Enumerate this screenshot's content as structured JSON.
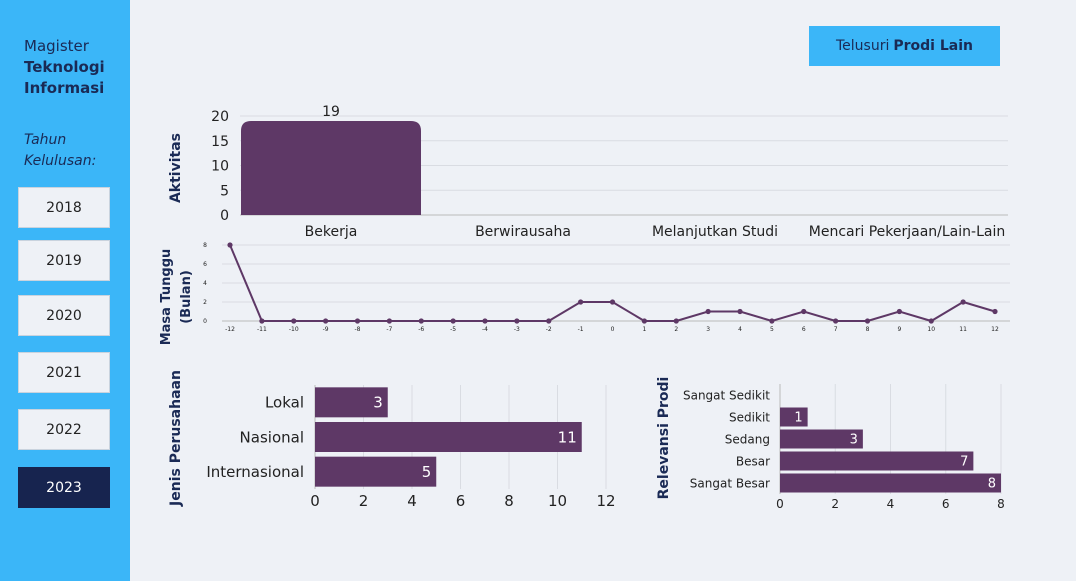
{
  "sidebar": {
    "program_line1": "Magister",
    "program_line2": "Teknologi",
    "program_line3": "Informasi",
    "tahun_line1": "Tahun",
    "tahun_line2": "Kelulusan:",
    "years": [
      "2018",
      "2019",
      "2020",
      "2021",
      "2022",
      "2023"
    ],
    "active_year": "2023"
  },
  "header": {
    "browse_prefix": "Telusuri",
    "browse_bold": "Prodi Lain"
  },
  "colors": {
    "bar": "#5e3866",
    "sidebar": "#3bb6f8",
    "active": "#17244f"
  },
  "chart_data": [
    {
      "type": "bar",
      "ylabel": "Aktivitas",
      "categories": [
        "Bekerja",
        "Berwirausaha",
        "Melanjutkan Studi",
        "Mencari Pekerjaan/Lain-Lain"
      ],
      "values": [
        19,
        0,
        0,
        0
      ],
      "data_labels": [
        "19"
      ],
      "ylim": [
        0,
        20
      ],
      "yticks": [
        0,
        5,
        10,
        15,
        20
      ]
    },
    {
      "type": "line",
      "ylabel_line1": "Masa Tunggu",
      "ylabel_line2": "(Bulan)",
      "x": [
        -12,
        -11,
        -10,
        -9,
        -8,
        -7,
        -6,
        -5,
        -4,
        -3,
        -2,
        -1,
        0,
        1,
        2,
        3,
        4,
        5,
        6,
        7,
        8,
        9,
        10,
        11,
        12
      ],
      "y": [
        8,
        0,
        0,
        0,
        0,
        0,
        0,
        0,
        0,
        0,
        0,
        2,
        2,
        0,
        0,
        1,
        1,
        0,
        1,
        0,
        0,
        1,
        0,
        2,
        1
      ],
      "ylim": [
        0,
        8
      ],
      "yticks": [
        0,
        2,
        4,
        6,
        8
      ]
    },
    {
      "type": "bar",
      "orientation": "horizontal",
      "ylabel": "Jenis Perusahaan",
      "categories": [
        "Lokal",
        "Nasional",
        "Internasional"
      ],
      "values": [
        3,
        11,
        5
      ],
      "xlim": [
        0,
        12
      ],
      "xticks": [
        0,
        2,
        4,
        6,
        8,
        10,
        12
      ]
    },
    {
      "type": "bar",
      "orientation": "horizontal",
      "ylabel": "Relevansi Prodi",
      "categories": [
        "Sangat Sedikit",
        "Sedikit",
        "Sedang",
        "Besar",
        "Sangat Besar"
      ],
      "values": [
        0,
        1,
        3,
        7,
        8
      ],
      "xlim": [
        0,
        8
      ],
      "xticks": [
        0,
        2,
        4,
        6,
        8
      ]
    }
  ]
}
